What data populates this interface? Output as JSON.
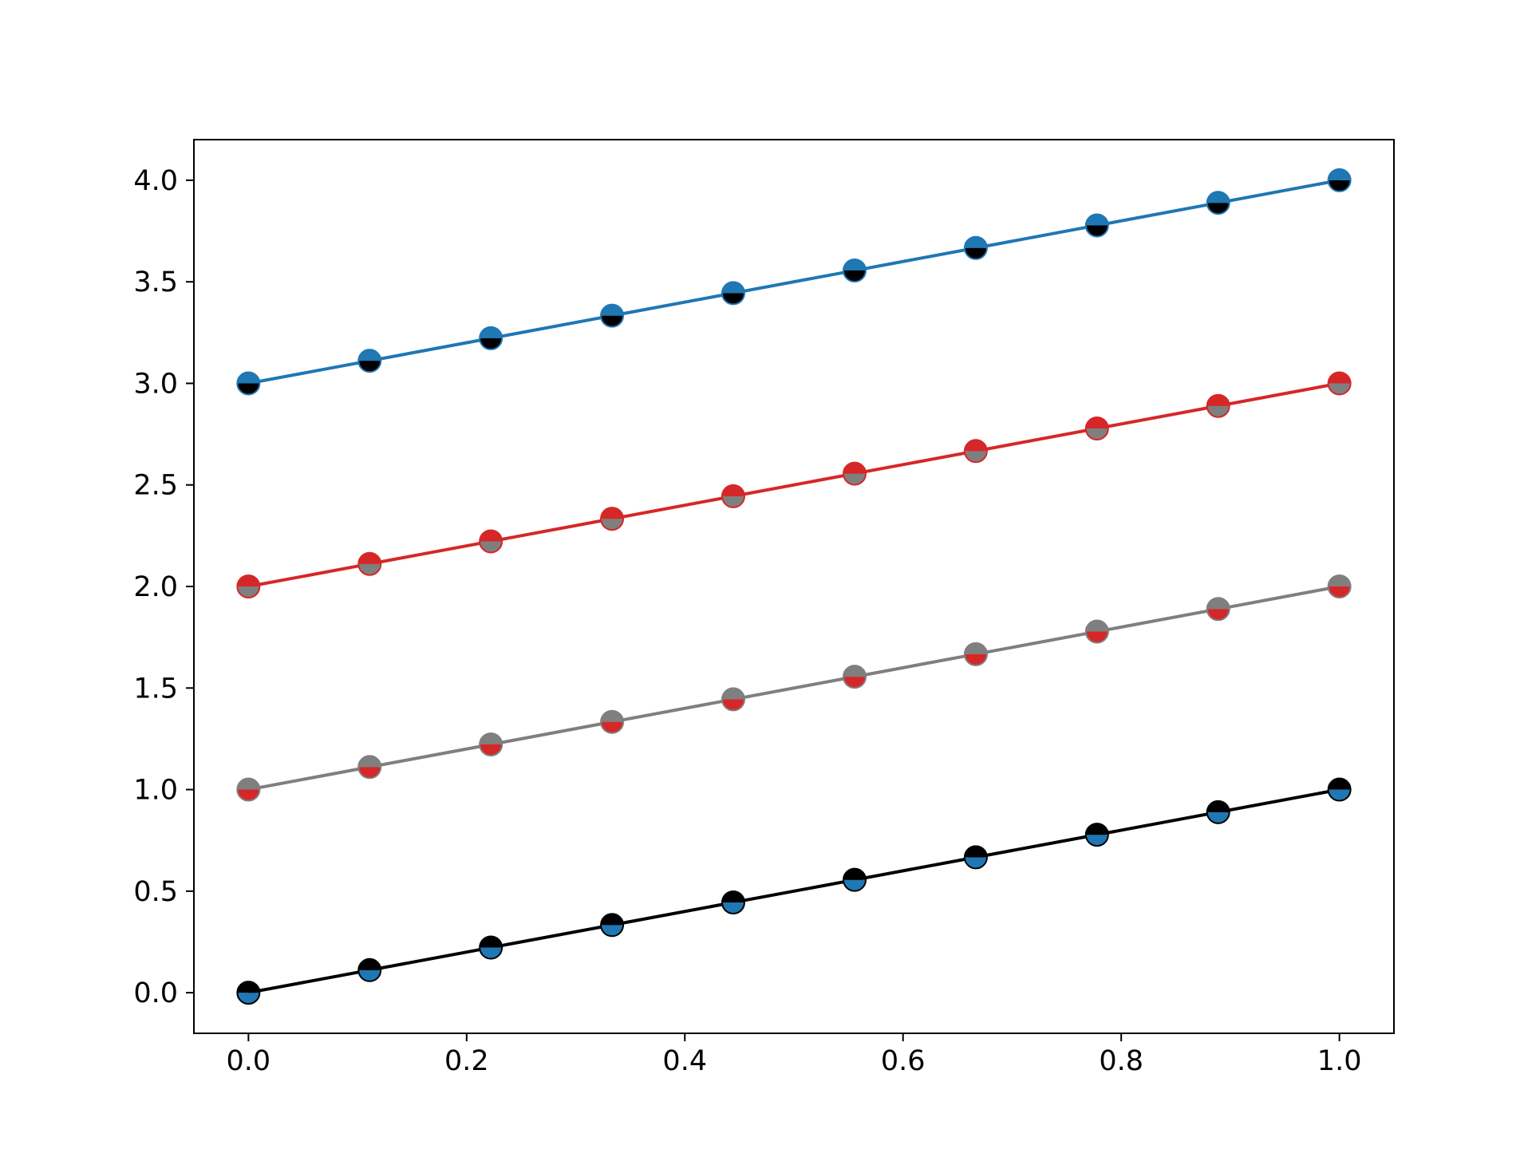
{
  "chart_data": {
    "type": "line",
    "title": "",
    "xlabel": "",
    "ylabel": "",
    "xlim": [
      -0.05,
      1.05
    ],
    "ylim": [
      -0.2,
      4.2
    ],
    "grid": false,
    "legend": "none",
    "marker": "circle, half-filled (top half = fillstyle top color, bottom half = alternate color)",
    "x_ticks": [
      0.0,
      0.2,
      0.4,
      0.6,
      0.8,
      1.0
    ],
    "x_tick_labels": [
      "0.0",
      "0.2",
      "0.4",
      "0.6",
      "0.8",
      "1.0"
    ],
    "y_ticks": [
      0.0,
      0.5,
      1.0,
      1.5,
      2.0,
      2.5,
      3.0,
      3.5,
      4.0
    ],
    "y_tick_labels": [
      "0.0",
      "0.5",
      "1.0",
      "1.5",
      "2.0",
      "2.5",
      "3.0",
      "3.5",
      "4.0"
    ],
    "x": [
      0.0,
      0.1111,
      0.2222,
      0.3333,
      0.4444,
      0.5556,
      0.6667,
      0.7778,
      0.8889,
      1.0
    ],
    "series": [
      {
        "line_color": "#000000",
        "marker_top_color": "#000000",
        "marker_bottom_color": "#1f77b4",
        "values": [
          0.0,
          0.1111,
          0.2222,
          0.3333,
          0.4444,
          0.5556,
          0.6667,
          0.7778,
          0.8889,
          1.0
        ]
      },
      {
        "line_color": "#7f7f7f",
        "marker_top_color": "#7f7f7f",
        "marker_bottom_color": "#d62728",
        "values": [
          1.0,
          1.1111,
          1.2222,
          1.3333,
          1.4444,
          1.5556,
          1.6667,
          1.7778,
          1.8889,
          2.0
        ]
      },
      {
        "line_color": "#d62728",
        "marker_top_color": "#d62728",
        "marker_bottom_color": "#7f7f7f",
        "values": [
          2.0,
          2.1111,
          2.2222,
          2.3333,
          2.4444,
          2.5556,
          2.6667,
          2.7778,
          2.8889,
          3.0
        ]
      },
      {
        "line_color": "#1f77b4",
        "marker_top_color": "#1f77b4",
        "marker_bottom_color": "#000000",
        "values": [
          3.0,
          3.1111,
          3.2222,
          3.3333,
          3.4444,
          3.5556,
          3.6667,
          3.7778,
          3.8889,
          4.0
        ]
      }
    ]
  }
}
